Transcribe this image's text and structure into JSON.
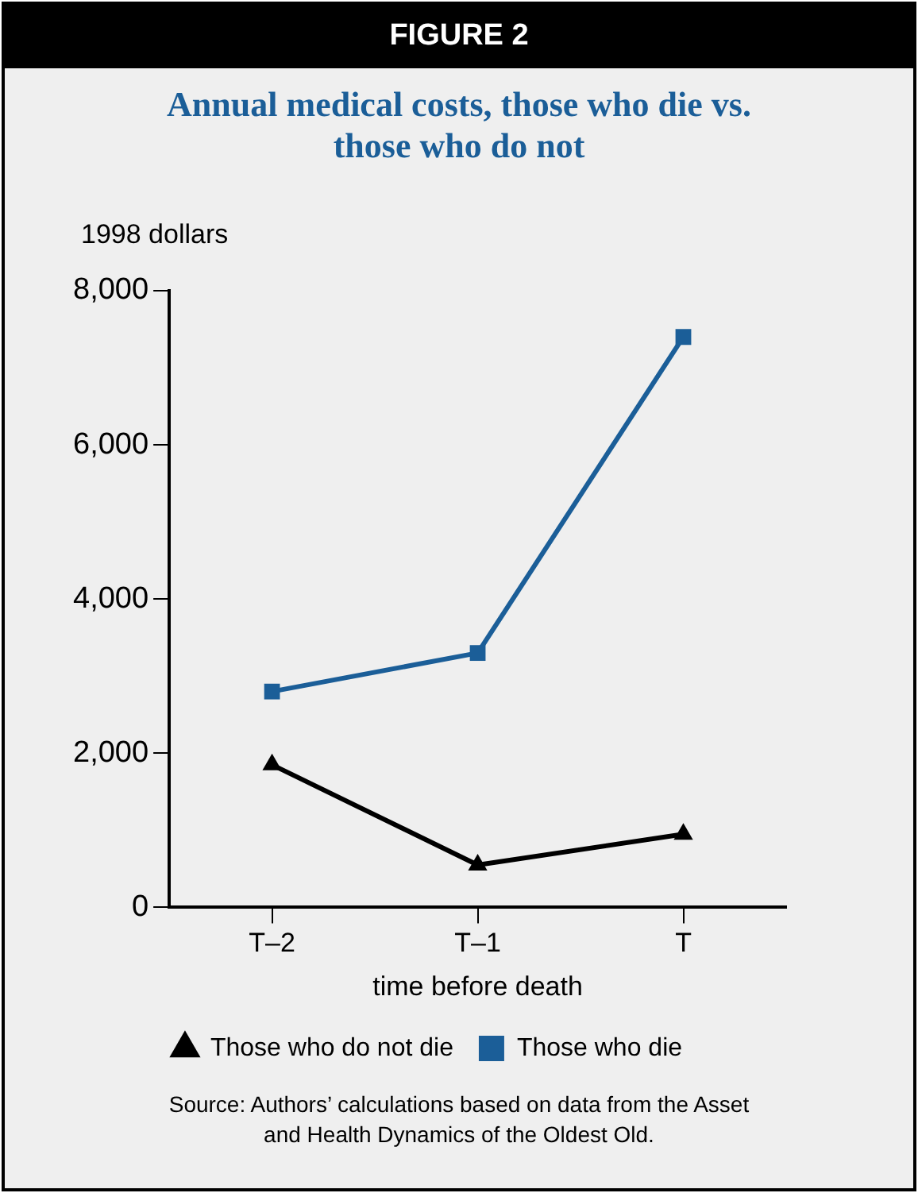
{
  "chart_data": {
    "type": "line",
    "title": "FIGURE 2",
    "subtitle": "Annual medical costs, those who die vs. those who do not",
    "ylabel": "1998 dollars",
    "xlabel": "time before death",
    "categories": [
      "T–2",
      "T–1",
      "T"
    ],
    "series": [
      {
        "name": "Those who do not die",
        "color": "#000000",
        "values": [
          1850,
          550,
          950
        ],
        "marker": "triangle"
      },
      {
        "name": "Those who die",
        "color": "#1b5e98",
        "values": [
          2800,
          3300,
          7400
        ],
        "marker": "square"
      }
    ],
    "ylim": [
      0,
      8000
    ],
    "yticks": [
      0,
      {
        "value": 2000,
        "label": "2,000"
      },
      {
        "value": 4000,
        "label": "4,000"
      },
      {
        "value": 6000,
        "label": "6,000"
      },
      {
        "value": 8000,
        "label": "8,000"
      }
    ],
    "grid": false,
    "legend": "bottom",
    "line_style": "solid",
    "annotations": [
      "Source: Authors’ calculations based on data from the Asset and Health Dynamics of the Oldest Old."
    ]
  }
}
